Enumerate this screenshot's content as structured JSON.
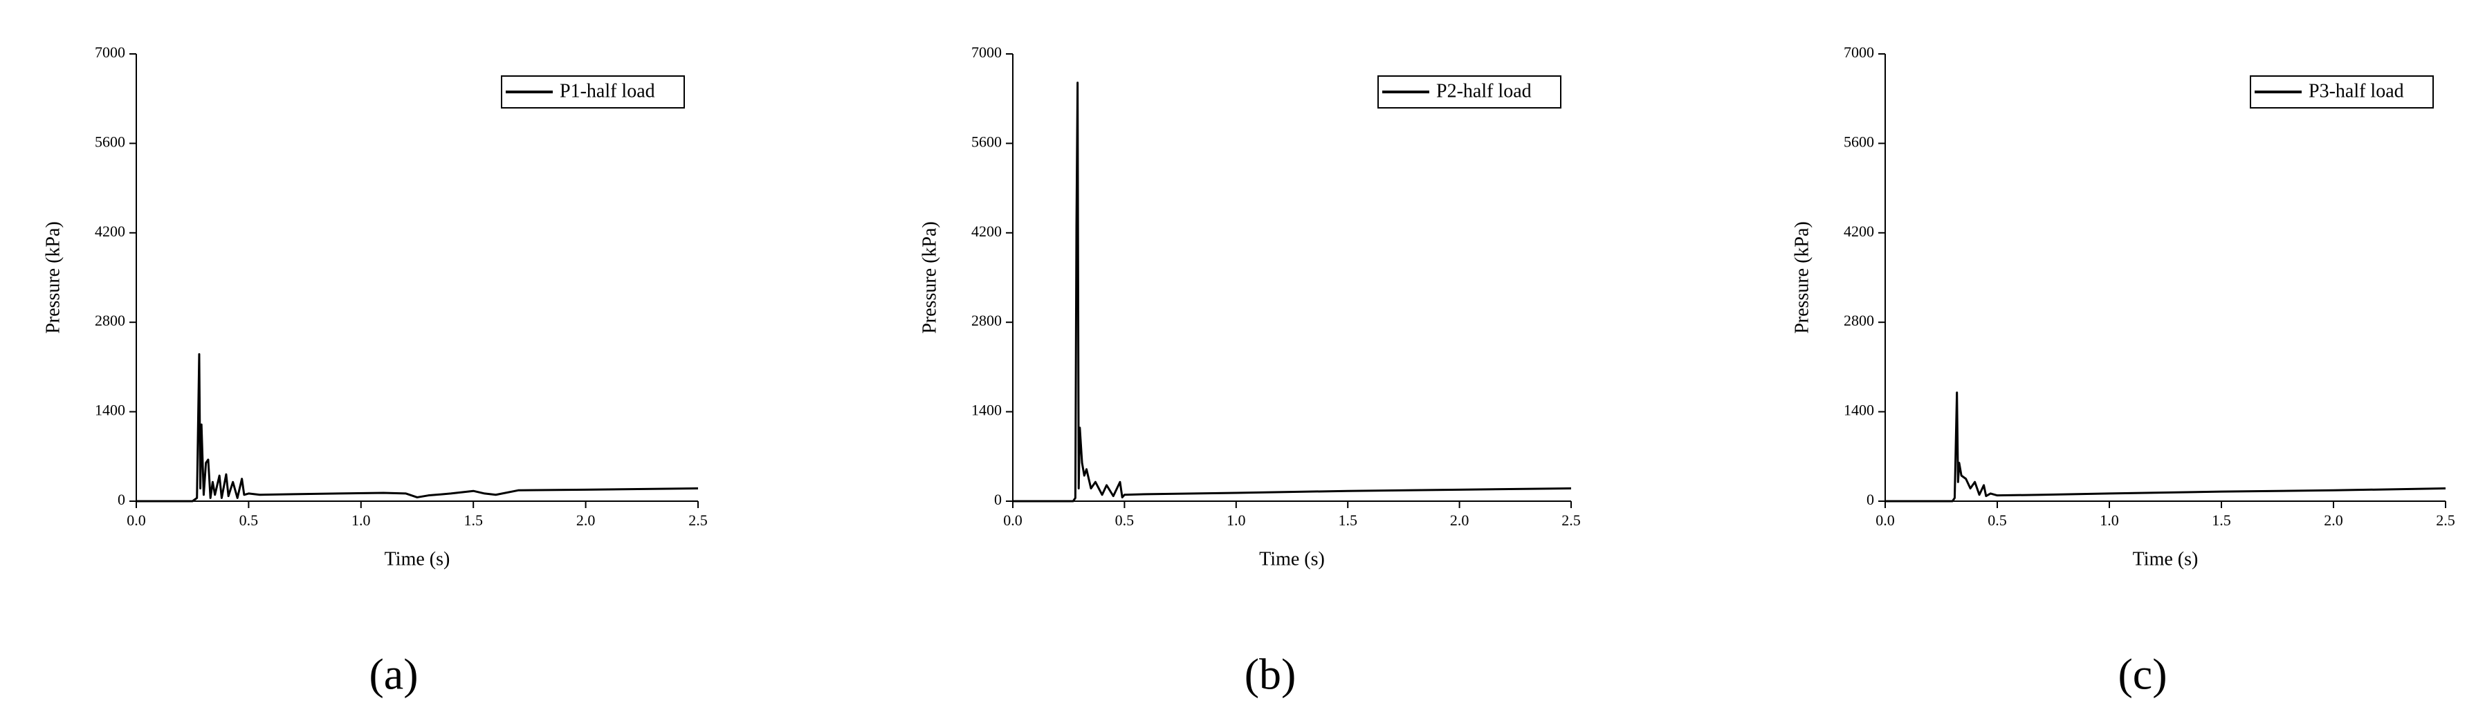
{
  "chart_data": [
    {
      "type": "line",
      "label": "(a)",
      "xlabel": "Time (s)",
      "ylabel": "Pressure (kPa)",
      "xlim": [
        0,
        2.5
      ],
      "ylim": [
        0,
        7000
      ],
      "xticks": [
        {
          "value": 0,
          "label": "0.0"
        },
        0.5,
        {
          "value": 1,
          "label": "1.0"
        },
        1.5,
        {
          "value": 2,
          "label": "2.0"
        },
        2.5
      ],
      "yticks": [
        0,
        1400,
        2800,
        4200,
        5600,
        7000
      ],
      "x": [
        0,
        0.25,
        0.27,
        0.28,
        0.285,
        0.29,
        0.3,
        0.31,
        0.32,
        0.33,
        0.34,
        0.35,
        0.37,
        0.38,
        0.4,
        0.41,
        0.43,
        0.45,
        0.47,
        0.48,
        0.5,
        0.55,
        0.7,
        0.9,
        1.1,
        1.2,
        1.25,
        1.3,
        1.4,
        1.5,
        1.55,
        1.6,
        1.7,
        2.0,
        2.5
      ],
      "series": [
        {
          "name": "P1-half load",
          "color": "#000000",
          "values": [
            0,
            0,
            50,
            2300,
            200,
            1200,
            100,
            600,
            650,
            50,
            300,
            100,
            400,
            50,
            420,
            80,
            300,
            50,
            350,
            100,
            120,
            100,
            110,
            120,
            130,
            120,
            60,
            90,
            120,
            160,
            120,
            100,
            170,
            180,
            200
          ]
        }
      ]
    },
    {
      "type": "line",
      "label": "(b)",
      "xlabel": "Time (s)",
      "ylabel": "Pressure (kPa)",
      "xlim": [
        0,
        2.5
      ],
      "ylim": [
        0,
        7000
      ],
      "xticks": [
        {
          "value": 0,
          "label": "0.0"
        },
        0.5,
        {
          "value": 1,
          "label": "1.0"
        },
        1.5,
        {
          "value": 2,
          "label": "2.0"
        },
        2.5
      ],
      "yticks": [
        0,
        1400,
        2800,
        4200,
        5600,
        7000
      ],
      "x": [
        0,
        0.27,
        0.28,
        0.285,
        0.29,
        0.295,
        0.3,
        0.31,
        0.32,
        0.33,
        0.35,
        0.37,
        0.4,
        0.42,
        0.45,
        0.48,
        0.49,
        0.5,
        0.6,
        1.0,
        1.5,
        2.0,
        2.5
      ],
      "series": [
        {
          "name": "P2-half load",
          "color": "#000000",
          "values": [
            0,
            0,
            50,
            4300,
            6550,
            200,
            1150,
            600,
            400,
            500,
            200,
            300,
            100,
            250,
            80,
            300,
            60,
            100,
            110,
            130,
            160,
            180,
            200
          ]
        }
      ]
    },
    {
      "type": "line",
      "label": "(c)",
      "xlabel": "Time (s)",
      "ylabel": "Pressure (kPa)",
      "xlim": [
        0,
        2.5
      ],
      "ylim": [
        0,
        7000
      ],
      "xticks": [
        {
          "value": 0,
          "label": "0.0"
        },
        0.5,
        {
          "value": 1,
          "label": "1.0"
        },
        1.5,
        {
          "value": 2,
          "label": "2.0"
        },
        2.5
      ],
      "yticks": [
        0,
        1400,
        2800,
        4200,
        5600,
        7000
      ],
      "x": [
        0,
        0.3,
        0.31,
        0.32,
        0.325,
        0.33,
        0.34,
        0.36,
        0.38,
        0.4,
        0.42,
        0.44,
        0.45,
        0.47,
        0.5,
        0.7,
        1.0,
        1.5,
        2.0,
        2.5
      ],
      "series": [
        {
          "name": "P3-half load",
          "color": "#000000",
          "values": [
            0,
            0,
            50,
            1700,
            300,
            600,
            400,
            350,
            200,
            300,
            100,
            250,
            80,
            120,
            90,
            100,
            120,
            150,
            170,
            200
          ]
        }
      ]
    }
  ]
}
